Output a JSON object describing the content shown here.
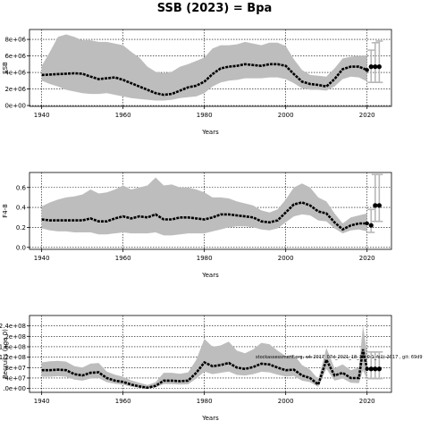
{
  "figure": {
    "title": "SSB (2023) = Bpa",
    "note": "stockassessment.org, wk 2017_07d_2021_18_19_0-1_fs1(-2017 , git: 69d9"
  },
  "colors": {
    "band": "#bdbdbd",
    "line": "#000000",
    "reference_bars": "#b8b8b8"
  },
  "chart_data": [
    {
      "type": "area",
      "id": "ssb",
      "title": "",
      "xlabel": "Years",
      "ylabel": "SSB",
      "xlim": [
        1937,
        2026
      ],
      "ylim": [
        -100000,
        9200000
      ],
      "xticks": [
        1940,
        1960,
        1980,
        2000,
        2020
      ],
      "xtick_labels": [
        "1940",
        "1960",
        "1980",
        "2000",
        "2020"
      ],
      "yticks": [
        0,
        2000000,
        4000000,
        6000000,
        8000000
      ],
      "ytick_labels": [
        "0e+00",
        "2e+06",
        "4e+06",
        "6e+06",
        "8e+06"
      ],
      "grid": true,
      "x": [
        1940,
        1942,
        1944,
        1946,
        1948,
        1950,
        1952,
        1954,
        1956,
        1958,
        1960,
        1962,
        1964,
        1966,
        1968,
        1970,
        1972,
        1974,
        1976,
        1978,
        1980,
        1982,
        1984,
        1986,
        1988,
        1990,
        1992,
        1994,
        1996,
        1998,
        2000,
        2002,
        2004,
        2006,
        2008,
        2010,
        2012,
        2014,
        2016,
        2018,
        2020
      ],
      "estimate": [
        3700000,
        3750000,
        3800000,
        3850000,
        3900000,
        3850000,
        3500000,
        3200000,
        3300000,
        3400000,
        3100000,
        2700000,
        2300000,
        1900000,
        1500000,
        1300000,
        1400000,
        1800000,
        2200000,
        2400000,
        2900000,
        3800000,
        4500000,
        4700000,
        4800000,
        5000000,
        4900000,
        4800000,
        5000000,
        5000000,
        4800000,
        3800000,
        2900000,
        2600000,
        2500000,
        2300000,
        3200000,
        4400000,
        4700000,
        4700000,
        4300000
      ],
      "lower": [
        3000000,
        2600000,
        2300000,
        1900000,
        1700000,
        1500000,
        1400000,
        1400000,
        1500000,
        1300000,
        1100000,
        900000,
        800000,
        700000,
        600000,
        600000,
        700000,
        900000,
        1000000,
        1100000,
        1500000,
        2300000,
        2800000,
        3000000,
        3100000,
        3300000,
        3300000,
        3300000,
        3400000,
        3400000,
        3200000,
        2700000,
        2100000,
        1900000,
        1900000,
        1800000,
        2300000,
        3200000,
        3500000,
        3400000,
        2900000
      ],
      "upper": [
        4800000,
        6500000,
        8300000,
        8600000,
        8300000,
        7900000,
        7900000,
        7700000,
        7700000,
        7500000,
        7300000,
        6500000,
        5800000,
        4700000,
        4100000,
        3900000,
        4100000,
        4700000,
        5000000,
        5400000,
        5800000,
        6900000,
        7300000,
        7300000,
        7400000,
        7700000,
        7500000,
        7300000,
        7600000,
        7600000,
        7200000,
        5600000,
        4300000,
        3700000,
        3600000,
        3500000,
        4500000,
        5700000,
        5900000,
        6000000,
        6100000
      ],
      "forecast_x": [
        2021,
        2022,
        2023
      ],
      "forecast": [
        4700000,
        4700000,
        4700000
      ],
      "forecast_lower": [
        2800000,
        2800000,
        2800000
      ],
      "forecast_upper": [
        6700000,
        7600000,
        7800000
      ]
    },
    {
      "type": "area",
      "id": "fbar",
      "title": "",
      "xlabel": "Years",
      "ylabel": "F4-8",
      "ylabel_sub": "4−8",
      "xlim": [
        1937,
        2026
      ],
      "ylim": [
        -0.02,
        0.75
      ],
      "xticks": [
        1940,
        1960,
        1980,
        2000,
        2020
      ],
      "xtick_labels": [
        "1940",
        "1960",
        "1980",
        "2000",
        "2020"
      ],
      "yticks": [
        0.0,
        0.2,
        0.4,
        0.6
      ],
      "ytick_labels": [
        "0.0",
        "0.2",
        "0.4",
        "0.6"
      ],
      "grid": true,
      "x": [
        1940,
        1942,
        1944,
        1946,
        1948,
        1950,
        1952,
        1954,
        1956,
        1958,
        1960,
        1962,
        1964,
        1966,
        1968,
        1970,
        1972,
        1974,
        1976,
        1978,
        1980,
        1982,
        1984,
        1986,
        1988,
        1990,
        1992,
        1994,
        1996,
        1998,
        2000,
        2002,
        2004,
        2006,
        2008,
        2010,
        2012,
        2014,
        2016,
        2018,
        2020
      ],
      "estimate": [
        0.28,
        0.27,
        0.27,
        0.27,
        0.27,
        0.27,
        0.29,
        0.26,
        0.26,
        0.29,
        0.31,
        0.29,
        0.31,
        0.3,
        0.33,
        0.28,
        0.28,
        0.3,
        0.3,
        0.29,
        0.28,
        0.3,
        0.33,
        0.33,
        0.32,
        0.31,
        0.3,
        0.26,
        0.25,
        0.27,
        0.35,
        0.43,
        0.45,
        0.42,
        0.36,
        0.34,
        0.25,
        0.18,
        0.22,
        0.24,
        0.24
      ],
      "lower": [
        0.19,
        0.17,
        0.16,
        0.16,
        0.15,
        0.15,
        0.15,
        0.13,
        0.13,
        0.14,
        0.15,
        0.14,
        0.14,
        0.14,
        0.15,
        0.12,
        0.12,
        0.13,
        0.14,
        0.14,
        0.14,
        0.16,
        0.18,
        0.2,
        0.21,
        0.21,
        0.2,
        0.18,
        0.17,
        0.19,
        0.25,
        0.31,
        0.33,
        0.32,
        0.27,
        0.26,
        0.19,
        0.14,
        0.17,
        0.18,
        0.16
      ],
      "upper": [
        0.41,
        0.45,
        0.48,
        0.5,
        0.51,
        0.53,
        0.58,
        0.54,
        0.55,
        0.58,
        0.62,
        0.58,
        0.6,
        0.62,
        0.7,
        0.62,
        0.63,
        0.6,
        0.6,
        0.58,
        0.55,
        0.5,
        0.5,
        0.49,
        0.46,
        0.44,
        0.42,
        0.37,
        0.35,
        0.38,
        0.48,
        0.6,
        0.64,
        0.6,
        0.5,
        0.46,
        0.34,
        0.24,
        0.3,
        0.32,
        0.34
      ],
      "forecast_x": [
        2021,
        2022,
        2023
      ],
      "forecast": [
        0.22,
        0.42,
        0.42
      ],
      "forecast_lower": [
        0.15,
        0.26,
        0.26
      ],
      "forecast_upper": [
        0.38,
        0.73,
        0.73
      ]
    },
    {
      "type": "area",
      "id": "recruitment",
      "title": "",
      "xlabel": "Years",
      "ylabel": "Recruits (age 0)",
      "xlim": [
        1937,
        2026
      ],
      "ylim": [
        -15000000,
        280000000
      ],
      "xticks": [
        1940,
        1960,
        1980,
        2000,
        2020
      ],
      "xtick_labels": [
        "1940",
        "1960",
        "1980",
        "2000",
        "2020"
      ],
      "yticks": [
        0,
        40000000,
        80000000,
        120000000,
        160000000,
        200000000,
        240000000
      ],
      "ytick_labels": [
        ".0e+00",
        "4e+07",
        "8e+07",
        "1.2e+08",
        "1.6e+08",
        "2e+08",
        "2.4e+08"
      ],
      "grid": true,
      "x": [
        1940,
        1942,
        1944,
        1946,
        1948,
        1950,
        1952,
        1954,
        1956,
        1958,
        1960,
        1962,
        1964,
        1966,
        1968,
        1970,
        1972,
        1974,
        1976,
        1978,
        1980,
        1982,
        1984,
        1986,
        1988,
        1990,
        1992,
        1994,
        1996,
        1998,
        2000,
        2002,
        2004,
        2006,
        2008,
        2010,
        2012,
        2014,
        2016,
        2018,
        2019,
        2020
      ],
      "estimate": [
        70000000,
        70000000,
        72000000,
        70000000,
        55000000,
        50000000,
        60000000,
        62000000,
        40000000,
        30000000,
        25000000,
        15000000,
        8000000,
        3000000,
        10000000,
        30000000,
        30000000,
        28000000,
        30000000,
        60000000,
        100000000,
        85000000,
        90000000,
        98000000,
        80000000,
        75000000,
        82000000,
        95000000,
        92000000,
        80000000,
        70000000,
        72000000,
        50000000,
        40000000,
        15000000,
        110000000,
        50000000,
        60000000,
        40000000,
        40000000,
        150000000,
        75000000
      ],
      "lower": [
        45000000,
        45000000,
        47000000,
        45000000,
        34000000,
        30000000,
        38000000,
        40000000,
        24000000,
        18000000,
        14000000,
        7000000,
        2000000,
        0,
        4000000,
        17000000,
        17000000,
        15000000,
        16000000,
        38000000,
        65000000,
        55000000,
        60000000,
        65000000,
        52000000,
        50000000,
        55000000,
        64000000,
        62000000,
        53000000,
        46000000,
        48000000,
        30000000,
        24000000,
        6000000,
        75000000,
        30000000,
        38000000,
        22000000,
        20000000,
        70000000,
        35000000
      ],
      "upper": [
        100000000,
        104000000,
        106000000,
        103000000,
        86000000,
        80000000,
        95000000,
        98000000,
        65000000,
        53000000,
        45000000,
        31000000,
        22000000,
        13000000,
        24000000,
        60000000,
        60000000,
        56000000,
        62000000,
        110000000,
        190000000,
        160000000,
        165000000,
        180000000,
        145000000,
        135000000,
        150000000,
        175000000,
        170000000,
        145000000,
        125000000,
        130000000,
        90000000,
        72000000,
        35000000,
        155000000,
        78000000,
        92000000,
        70000000,
        80000000,
        240000000,
        140000000
      ],
      "forecast_x": [
        2021,
        2022,
        2023
      ],
      "forecast": [
        75000000,
        75000000,
        75000000
      ],
      "forecast_lower": [
        38000000,
        38000000,
        38000000
      ],
      "forecast_upper": [
        140000000,
        140000000,
        140000000
      ]
    }
  ]
}
